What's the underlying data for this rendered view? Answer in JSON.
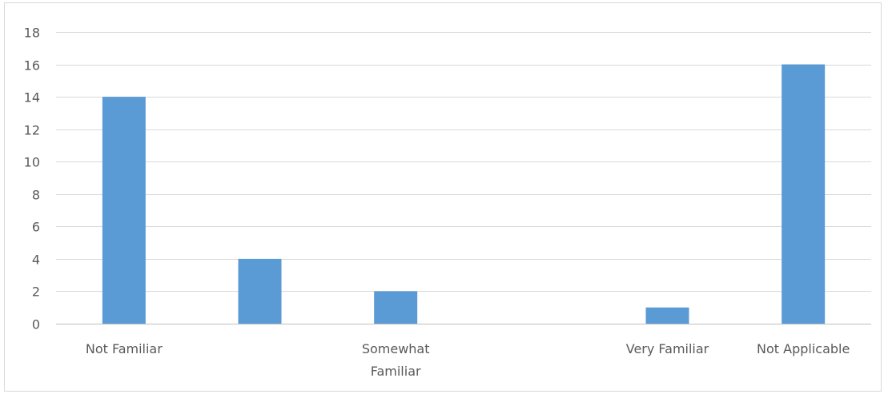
{
  "chart_data": {
    "type": "bar",
    "categories": [
      "Not Familiar",
      "",
      "Somewhat Familiar",
      "",
      "Very Familiar",
      "Not Applicable"
    ],
    "category_label_lines": [
      [
        "Not Familiar"
      ],
      [],
      [
        "Somewhat",
        "Familiar"
      ],
      [],
      [
        "Very Familiar"
      ],
      [
        "Not Applicable"
      ]
    ],
    "bars": [
      {
        "x": 0.5,
        "value": 14
      },
      {
        "x": 1.5,
        "value": 4
      },
      {
        "x": 2.5,
        "value": 2
      },
      {
        "x": 4.5,
        "value": 1
      },
      {
        "x": 5.5,
        "value": 16
      }
    ],
    "ylim": [
      0,
      18
    ],
    "yticks": [
      0,
      2,
      4,
      6,
      8,
      10,
      12,
      14,
      16,
      18
    ],
    "grid": true,
    "legend": "none",
    "title": "",
    "xlabel": "",
    "ylabel": "",
    "bar_color": "#5b9bd5"
  }
}
